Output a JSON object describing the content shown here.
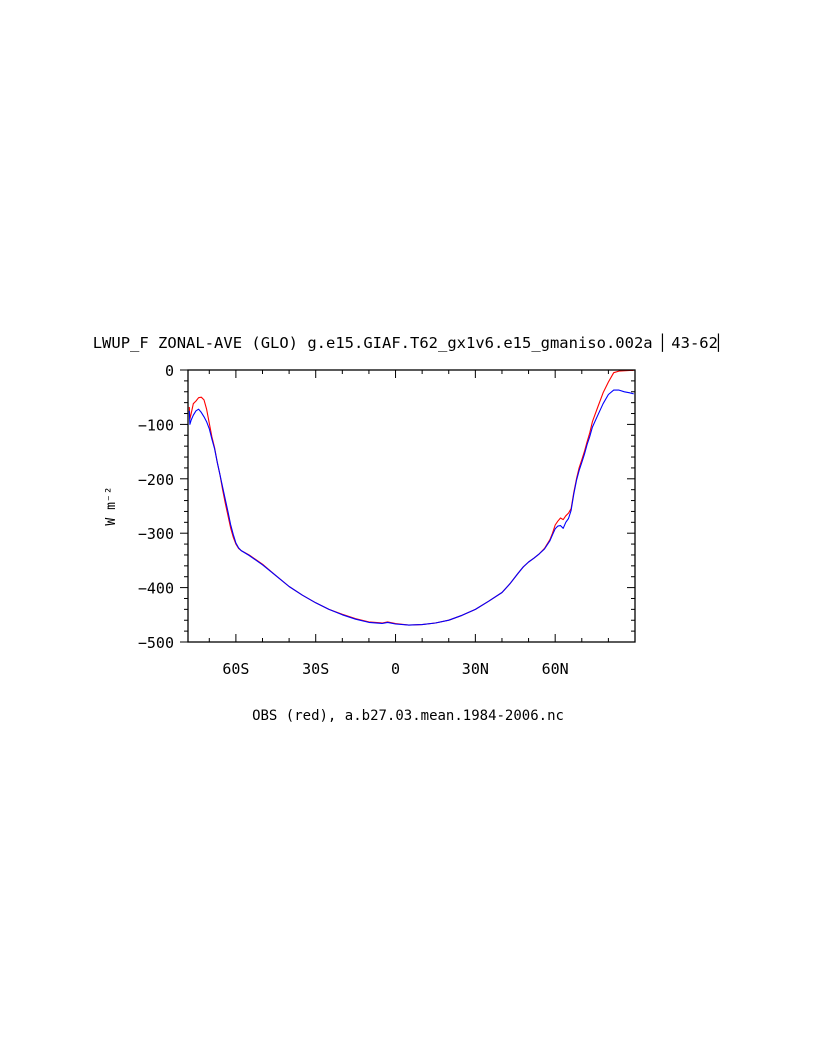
{
  "chart_data": {
    "type": "line",
    "title": "LWUP_F ZONAL-AVE (GLO) g.e15.GIAF.T62_gx1v6.e15_gmaniso.002a ▏43-62▏",
    "ylabel": "W m⁻²",
    "xlabel": "OBS (red), a.b27.03.mean.1984-2006.nc",
    "xlim": [
      -78,
      90
    ],
    "ylim": [
      -500,
      0
    ],
    "x_ticks": [
      {
        "value": -60,
        "label": "60S"
      },
      {
        "value": -30,
        "label": "30S"
      },
      {
        "value": 0,
        "label": "0"
      },
      {
        "value": 30,
        "label": "30N"
      },
      {
        "value": 60,
        "label": "60N"
      }
    ],
    "y_ticks": [
      {
        "value": 0,
        "label": "0"
      },
      {
        "value": -100,
        "label": "−100"
      },
      {
        "value": -200,
        "label": "−200"
      },
      {
        "value": -300,
        "label": "−300"
      },
      {
        "value": -400,
        "label": "−400"
      },
      {
        "value": -500,
        "label": "−500"
      }
    ],
    "series": [
      {
        "color": "#ff0000",
        "points": [
          [
            -77.5,
            -68
          ],
          [
            -77.3,
            -90
          ],
          [
            -76.8,
            -80
          ],
          [
            -76,
            -62
          ],
          [
            -75,
            -57
          ],
          [
            -74,
            -51
          ],
          [
            -73,
            -50
          ],
          [
            -72,
            -55
          ],
          [
            -71,
            -72
          ],
          [
            -70,
            -98
          ],
          [
            -69,
            -123
          ],
          [
            -68,
            -143
          ],
          [
            -67,
            -170
          ],
          [
            -66,
            -192
          ],
          [
            -65,
            -220
          ],
          [
            -64,
            -245
          ],
          [
            -63,
            -267
          ],
          [
            -62,
            -290
          ],
          [
            -61,
            -307
          ],
          [
            -60,
            -320
          ],
          [
            -59,
            -328
          ],
          [
            -58,
            -332
          ],
          [
            -55,
            -340
          ],
          [
            -50,
            -357
          ],
          [
            -45,
            -378
          ],
          [
            -40,
            -398
          ],
          [
            -35,
            -414
          ],
          [
            -30,
            -428
          ],
          [
            -25,
            -440
          ],
          [
            -20,
            -449
          ],
          [
            -15,
            -457
          ],
          [
            -10,
            -463
          ],
          [
            -5,
            -465
          ],
          [
            -3,
            -463
          ],
          [
            0,
            -466
          ],
          [
            5,
            -469
          ],
          [
            10,
            -468
          ],
          [
            15,
            -465
          ],
          [
            20,
            -460
          ],
          [
            25,
            -451
          ],
          [
            30,
            -440
          ],
          [
            35,
            -425
          ],
          [
            40,
            -409
          ],
          [
            43,
            -393
          ],
          [
            46,
            -374
          ],
          [
            48,
            -362
          ],
          [
            50,
            -353
          ],
          [
            52,
            -346
          ],
          [
            54,
            -338
          ],
          [
            56,
            -328
          ],
          [
            58,
            -312
          ],
          [
            59,
            -300
          ],
          [
            60,
            -285
          ],
          [
            61,
            -278
          ],
          [
            62,
            -272
          ],
          [
            63,
            -275
          ],
          [
            64,
            -268
          ],
          [
            65,
            -263
          ],
          [
            66,
            -255
          ],
          [
            67,
            -225
          ],
          [
            68,
            -200
          ],
          [
            69,
            -180
          ],
          [
            70,
            -165
          ],
          [
            71,
            -150
          ],
          [
            72,
            -132
          ],
          [
            73,
            -115
          ],
          [
            74,
            -95
          ],
          [
            76,
            -68
          ],
          [
            78,
            -42
          ],
          [
            80,
            -22
          ],
          [
            82,
            -5
          ],
          [
            84,
            -2
          ],
          [
            88,
            -1
          ],
          [
            89.5,
            -1
          ]
        ]
      },
      {
        "color": "#0000ff",
        "points": [
          [
            -77.5,
            -75
          ],
          [
            -77.3,
            -100
          ],
          [
            -76.8,
            -92
          ],
          [
            -76,
            -83
          ],
          [
            -75,
            -75
          ],
          [
            -74,
            -72
          ],
          [
            -73,
            -78
          ],
          [
            -72,
            -86
          ],
          [
            -71,
            -95
          ],
          [
            -70,
            -108
          ],
          [
            -69,
            -127
          ],
          [
            -68,
            -145
          ],
          [
            -67,
            -170
          ],
          [
            -66,
            -192
          ],
          [
            -65,
            -215
          ],
          [
            -64,
            -238
          ],
          [
            -63,
            -260
          ],
          [
            -62,
            -284
          ],
          [
            -61,
            -302
          ],
          [
            -60,
            -318
          ],
          [
            -59,
            -327
          ],
          [
            -58,
            -332
          ],
          [
            -55,
            -341
          ],
          [
            -50,
            -358
          ],
          [
            -45,
            -378
          ],
          [
            -40,
            -398
          ],
          [
            -35,
            -414
          ],
          [
            -30,
            -428
          ],
          [
            -25,
            -440
          ],
          [
            -20,
            -450
          ],
          [
            -15,
            -458
          ],
          [
            -10,
            -464
          ],
          [
            -5,
            -466
          ],
          [
            -3,
            -464
          ],
          [
            0,
            -467
          ],
          [
            5,
            -469
          ],
          [
            10,
            -468
          ],
          [
            15,
            -465
          ],
          [
            20,
            -460
          ],
          [
            25,
            -451
          ],
          [
            30,
            -440
          ],
          [
            35,
            -425
          ],
          [
            40,
            -409
          ],
          [
            43,
            -393
          ],
          [
            46,
            -374
          ],
          [
            48,
            -362
          ],
          [
            50,
            -353
          ],
          [
            52,
            -346
          ],
          [
            54,
            -338
          ],
          [
            56,
            -329
          ],
          [
            58,
            -314
          ],
          [
            59,
            -303
          ],
          [
            60,
            -292
          ],
          [
            61,
            -287
          ],
          [
            62,
            -286
          ],
          [
            63,
            -291
          ],
          [
            64,
            -280
          ],
          [
            65,
            -273
          ],
          [
            66,
            -258
          ],
          [
            67,
            -228
          ],
          [
            68,
            -203
          ],
          [
            69,
            -185
          ],
          [
            70,
            -170
          ],
          [
            71,
            -155
          ],
          [
            72,
            -137
          ],
          [
            73,
            -122
          ],
          [
            74,
            -105
          ],
          [
            76,
            -83
          ],
          [
            78,
            -62
          ],
          [
            80,
            -45
          ],
          [
            82,
            -37
          ],
          [
            84,
            -37
          ],
          [
            86,
            -40
          ],
          [
            88,
            -42
          ],
          [
            89.5,
            -44
          ]
        ]
      }
    ]
  }
}
